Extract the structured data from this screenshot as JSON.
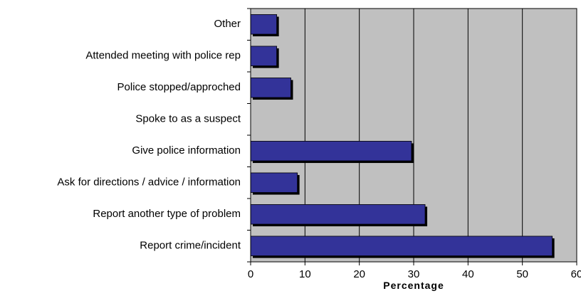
{
  "chart_data": {
    "type": "bar",
    "orientation": "horizontal",
    "categories": [
      "Other",
      "Attended meeting with police rep",
      "Police stopped/approched",
      "Spoke to as a suspect",
      "Give police information",
      "Ask for directions / advice / information",
      "Report another type of problem",
      "Report crime/incident"
    ],
    "values": [
      4.8,
      4.8,
      7.4,
      0,
      29.6,
      8.6,
      32.1,
      55.5
    ],
    "xlabel": "Percentage",
    "xlim": [
      0,
      60
    ],
    "xticks": [
      "0",
      "10",
      "20",
      "30",
      "40",
      "50",
      "60"
    ],
    "grid": true,
    "colors": {
      "bar": "#333399",
      "bar_shadow": "#000000",
      "plot_background": "#c0c0c0",
      "grid": "#000000"
    }
  }
}
